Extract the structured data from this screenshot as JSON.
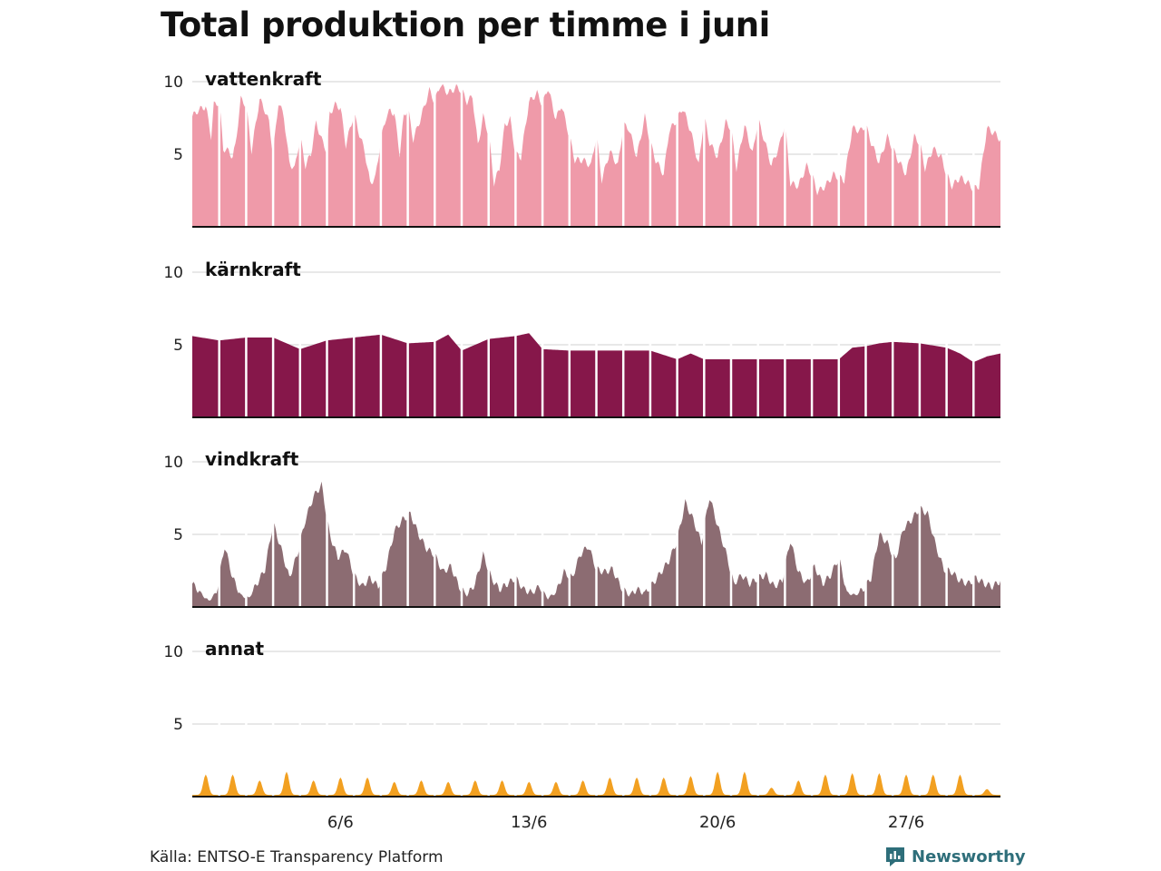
{
  "title": "Total produktion per timme i juni",
  "source": "Källa: ENTSO-E Transparency Platform",
  "brand": "Newsworthy",
  "chart_data": {
    "type": "area",
    "title": "Total produktion per timme i juni",
    "xlabel": "",
    "ylabel": "",
    "ylim": [
      0,
      10
    ],
    "yticks": [
      "10",
      "5"
    ],
    "xtick_labels": [
      "6/6",
      "13/6",
      "20/6",
      "27/6"
    ],
    "xtick_days": [
      6,
      13,
      20,
      27
    ],
    "days": 30,
    "series": [
      {
        "name": "vattenkraft",
        "color": "#ef9aa9",
        "x": [
          0,
          0.2,
          0.5,
          0.7,
          0.8,
          1,
          1.15,
          1.35,
          1.5,
          1.6,
          1.8,
          2,
          2.2,
          2.5,
          2.7,
          2.85,
          3,
          3.2,
          3.4,
          3.6,
          3.8,
          4,
          4.2,
          4.4,
          4.6,
          4.8,
          5,
          5.1,
          5.3,
          5.5,
          5.7,
          6,
          6.2,
          6.4,
          6.6,
          6.8,
          7,
          7.2,
          7.35,
          7.5,
          7.7,
          7.85,
          8,
          8.2,
          8.5,
          8.8,
          9,
          9.2,
          9.5,
          9.8,
          10,
          10.2,
          10.4,
          10.6,
          10.8,
          11,
          11.2,
          11.4,
          11.6,
          11.8,
          12,
          12.2,
          12.5,
          12.8,
          13,
          13.2,
          13.5,
          13.7,
          14,
          14.2,
          14.5,
          14.8,
          15,
          15.2,
          15.5,
          15.8,
          16,
          16.2,
          16.5,
          16.8,
          17,
          17.2,
          17.5,
          17.7,
          18,
          18.2,
          18.5,
          18.8,
          19,
          19.2,
          19.5,
          19.8,
          20,
          20.2,
          20.5,
          20.8,
          21,
          21.2,
          21.5,
          21.8,
          22,
          22.2,
          22.5,
          22.8,
          23,
          23.2,
          23.5,
          23.8,
          24,
          24.2,
          24.5,
          24.8,
          25,
          25.2,
          25.5,
          25.8,
          26,
          26.2,
          26.5,
          26.8,
          27,
          27.2,
          27.5,
          27.8,
          28,
          28.2,
          28.5,
          28.8,
          29,
          29.2,
          29.5,
          29.8,
          30
        ],
        "values": [
          7.6,
          8.0,
          8.3,
          6.2,
          8.4,
          8.6,
          5.4,
          5.2,
          4.8,
          5.6,
          8.8,
          8.4,
          5.2,
          8.8,
          8.0,
          7.2,
          5.0,
          8.6,
          7.6,
          4.4,
          4.0,
          6.2,
          4.2,
          5.0,
          7.2,
          6.0,
          5.2,
          7.8,
          8.4,
          8.2,
          5.6,
          7.8,
          6.4,
          5.2,
          3.0,
          3.4,
          6.0,
          7.6,
          8.0,
          7.8,
          5.0,
          7.6,
          8.2,
          6.0,
          7.6,
          9.4,
          8.6,
          9.8,
          9.2,
          9.6,
          9.4,
          8.6,
          9.0,
          5.6,
          7.6,
          6.4,
          3.0,
          4.0,
          7.0,
          7.4,
          5.0,
          4.8,
          8.6,
          9.2,
          8.4,
          9.6,
          7.4,
          8.4,
          6.2,
          4.6,
          4.6,
          4.2,
          6.4,
          3.2,
          5.2,
          4.2,
          7.0,
          6.8,
          4.8,
          7.6,
          5.8,
          4.6,
          3.6,
          6.6,
          7.4,
          8.2,
          6.6,
          4.2,
          7.6,
          5.8,
          4.8,
          7.2,
          6.8,
          4.0,
          7.0,
          5.0,
          7.4,
          6.2,
          4.2,
          5.6,
          7.2,
          3.0,
          2.8,
          4.2,
          3.6,
          2.4,
          2.8,
          3.6,
          3.4,
          3.2,
          6.8,
          6.6,
          7.0,
          5.8,
          4.4,
          6.2,
          5.4,
          4.6,
          3.6,
          6.2,
          5.8,
          4.0,
          5.4,
          4.8,
          3.6,
          2.8,
          3.4,
          3.0,
          2.6,
          2.8,
          6.8,
          6.4,
          6.0
        ]
      },
      {
        "name": "kärnkraft",
        "color": "#86174a",
        "x": [
          0,
          1,
          2,
          3,
          4,
          5,
          6,
          7,
          8,
          9,
          9.5,
          10,
          10.5,
          11,
          11.5,
          12,
          12.5,
          13,
          14,
          15,
          16,
          17,
          17.5,
          18,
          18.5,
          19,
          20,
          21,
          22,
          23,
          24,
          24.5,
          25,
          25.5,
          26,
          27,
          28,
          28.5,
          29,
          29.5,
          30
        ],
        "values": [
          5.6,
          5.3,
          5.5,
          5.5,
          4.7,
          5.3,
          5.5,
          5.7,
          5.1,
          5.2,
          5.7,
          4.6,
          5.0,
          5.4,
          5.5,
          5.6,
          5.8,
          4.7,
          4.6,
          4.6,
          4.6,
          4.6,
          4.3,
          4.0,
          4.4,
          4.0,
          4.0,
          4.0,
          4.0,
          4.0,
          4.0,
          4.8,
          4.9,
          5.1,
          5.2,
          5.1,
          4.8,
          4.4,
          3.8,
          4.2,
          4.4
        ]
      },
      {
        "name": "vindkraft",
        "color": "#8c6c72",
        "x": [
          0,
          0.3,
          0.6,
          0.9,
          1.2,
          1.5,
          1.8,
          2.1,
          2.4,
          2.7,
          3,
          3.3,
          3.6,
          3.9,
          4.2,
          4.5,
          4.8,
          5.1,
          5.4,
          5.7,
          6,
          6.3,
          6.6,
          6.9,
          7.2,
          7.5,
          7.8,
          8.1,
          8.4,
          8.7,
          9,
          9.3,
          9.6,
          9.9,
          10.2,
          10.5,
          10.8,
          11.1,
          11.4,
          11.7,
          12,
          12.3,
          12.6,
          12.9,
          13.2,
          13.5,
          13.8,
          14.1,
          14.4,
          14.7,
          15,
          15.3,
          15.6,
          15.9,
          16.2,
          16.5,
          16.8,
          17.1,
          17.4,
          17.7,
          18,
          18.3,
          18.6,
          18.9,
          19.2,
          19.5,
          19.8,
          20.1,
          20.4,
          20.7,
          21,
          21.3,
          21.6,
          21.9,
          22.2,
          22.5,
          22.8,
          23.1,
          23.4,
          23.7,
          24,
          24.3,
          24.6,
          24.9,
          25.2,
          25.5,
          25.8,
          26.1,
          26.4,
          26.7,
          27,
          27.3,
          27.6,
          27.9,
          28.2,
          28.5,
          28.8,
          29.1,
          29.4,
          29.7,
          30
        ],
        "values": [
          1.6,
          1.0,
          0.4,
          1.0,
          4.2,
          2.0,
          0.8,
          0.6,
          1.6,
          2.6,
          5.8,
          4.0,
          2.0,
          3.6,
          6.0,
          7.6,
          8.4,
          5.0,
          3.4,
          4.0,
          2.2,
          1.4,
          2.0,
          1.4,
          2.8,
          5.2,
          6.0,
          6.4,
          5.0,
          4.0,
          3.6,
          2.4,
          2.8,
          1.4,
          0.8,
          1.6,
          3.6,
          2.0,
          1.2,
          1.6,
          2.0,
          1.2,
          1.0,
          1.4,
          0.6,
          1.0,
          2.4,
          2.0,
          3.6,
          4.2,
          2.6,
          2.4,
          2.6,
          1.4,
          0.8,
          1.2,
          1.0,
          1.6,
          2.4,
          3.2,
          4.6,
          7.2,
          6.0,
          4.4,
          7.6,
          5.6,
          3.8,
          1.6,
          2.2,
          1.6,
          2.0,
          2.2,
          1.4,
          1.8,
          4.6,
          2.4,
          1.6,
          2.8,
          1.6,
          2.2,
          3.4,
          1.0,
          0.8,
          1.2,
          2.0,
          5.0,
          4.4,
          3.2,
          5.4,
          6.0,
          6.8,
          6.4,
          4.2,
          2.6,
          2.4,
          1.8,
          1.6,
          2.0,
          1.6,
          1.4,
          1.8
        ]
      },
      {
        "name": "annat",
        "color": "#f2a021",
        "x": [
          0,
          1,
          2,
          3,
          4,
          5,
          6,
          7,
          8,
          9,
          10,
          11,
          12,
          13,
          14,
          15,
          16,
          17,
          18,
          19,
          20,
          21,
          22,
          23,
          24,
          25,
          26,
          27,
          28,
          29
        ],
        "values": [
          1.4,
          1.4,
          1.0,
          1.6,
          1.0,
          1.2,
          1.2,
          0.9,
          1.0,
          0.9,
          1.0,
          1.0,
          0.9,
          0.9,
          1.0,
          1.2,
          1.2,
          1.2,
          1.3,
          1.6,
          1.6,
          0.5,
          1.0,
          1.4,
          1.5,
          1.5,
          1.4,
          1.4,
          1.4,
          0.4
        ]
      }
    ]
  }
}
